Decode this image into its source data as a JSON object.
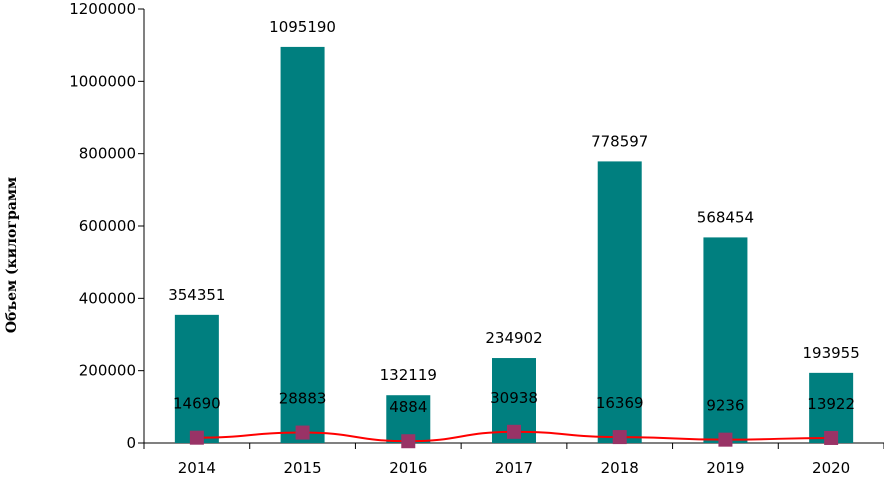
{
  "chart_data": {
    "type": "bar",
    "categories": [
      "2014",
      "2015",
      "2016",
      "2017",
      "2018",
      "2019",
      "2020"
    ],
    "series": [
      {
        "type": "bar",
        "values": [
          354351,
          1095190,
          132119,
          234902,
          778597,
          568454,
          193955
        ],
        "color": "#007F7F"
      },
      {
        "type": "line",
        "values": [
          14690,
          28883,
          4884,
          30938,
          16369,
          9236,
          13922
        ],
        "color": "#FF0000",
        "marker_color": "#993366"
      }
    ],
    "ylabel": "Объем (килограмм",
    "ylim": [
      0,
      1200000
    ],
    "yticks": [
      0,
      200000,
      400000,
      600000,
      800000,
      1000000,
      1200000
    ],
    "grid": false,
    "legend": "none"
  }
}
